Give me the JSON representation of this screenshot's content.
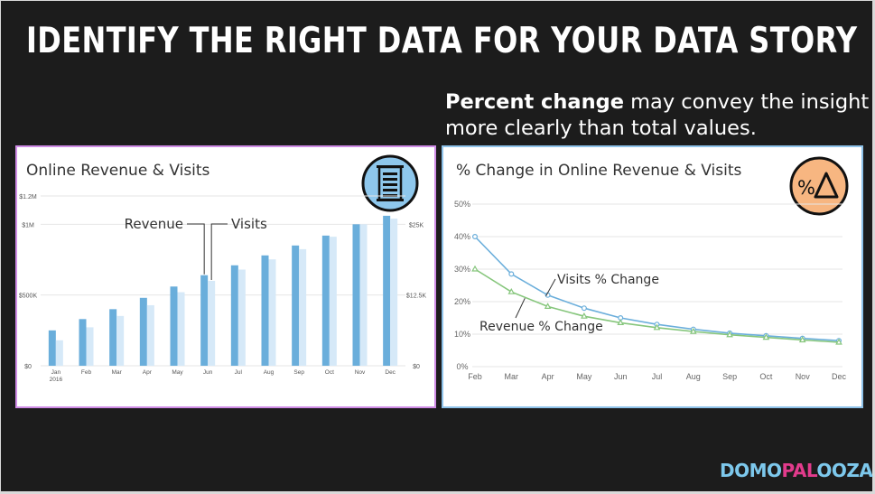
{
  "slide": {
    "title": "IDENTIFY THE RIGHT DATA FOR YOUR DATA STORY",
    "subtitle_bold": "Percent change",
    "subtitle_rest": " may convey the insight more clearly than total values.",
    "brand_a": "DOMO",
    "brand_b": "PAL",
    "brand_c": "OOZA"
  },
  "chart_data": [
    {
      "type": "bar",
      "title": "Online Revenue & Visits",
      "icon": "abacus-icon",
      "categories": [
        "Jan",
        "Feb",
        "Mar",
        "Apr",
        "May",
        "Jun",
        "Jul",
        "Aug",
        "Sep",
        "Oct",
        "Nov",
        "Dec"
      ],
      "first_category_sub": "2016",
      "left_ticks": [
        "$0",
        "$500K",
        "$1M",
        "$1.2M"
      ],
      "right_ticks": [
        "$0",
        "$12.5K",
        "$25K"
      ],
      "ylim_left": [
        0,
        1200000
      ],
      "ylim_right": [
        0,
        30000
      ],
      "series": [
        {
          "name": "Revenue",
          "axis": "left",
          "color": "#6aaedb",
          "values": [
            250000,
            330000,
            400000,
            480000,
            560000,
            640000,
            710000,
            780000,
            850000,
            920000,
            1000000,
            1060000
          ]
        },
        {
          "name": "Visits",
          "axis": "right",
          "color": "#d6e9f8",
          "values": [
            4500,
            6800,
            8800,
            10700,
            13000,
            15000,
            17000,
            18800,
            20600,
            22800,
            25000,
            26000
          ]
        }
      ]
    },
    {
      "type": "line",
      "title": "% Change in Online Revenue & Visits",
      "icon": "percent-delta-icon",
      "icon_text": "%",
      "categories": [
        "Feb",
        "Mar",
        "Apr",
        "May",
        "Jun",
        "Jul",
        "Aug",
        "Sep",
        "Oct",
        "Nov",
        "Dec"
      ],
      "y_ticks": [
        "0%",
        "10%",
        "20%",
        "30%",
        "40%",
        "50%"
      ],
      "ylim": [
        0,
        50
      ],
      "series": [
        {
          "name": "Visits % Change",
          "color": "#6aaedb",
          "marker": "circle",
          "values": [
            40,
            28.5,
            22,
            18,
            15,
            13,
            11.5,
            10.3,
            9.5,
            8.7,
            8
          ]
        },
        {
          "name": "Revenue % Change",
          "color": "#86c67c",
          "marker": "triangle",
          "values": [
            30,
            23,
            18.5,
            15.5,
            13.5,
            12,
            10.8,
            9.8,
            9,
            8.2,
            7.5
          ]
        }
      ]
    }
  ]
}
